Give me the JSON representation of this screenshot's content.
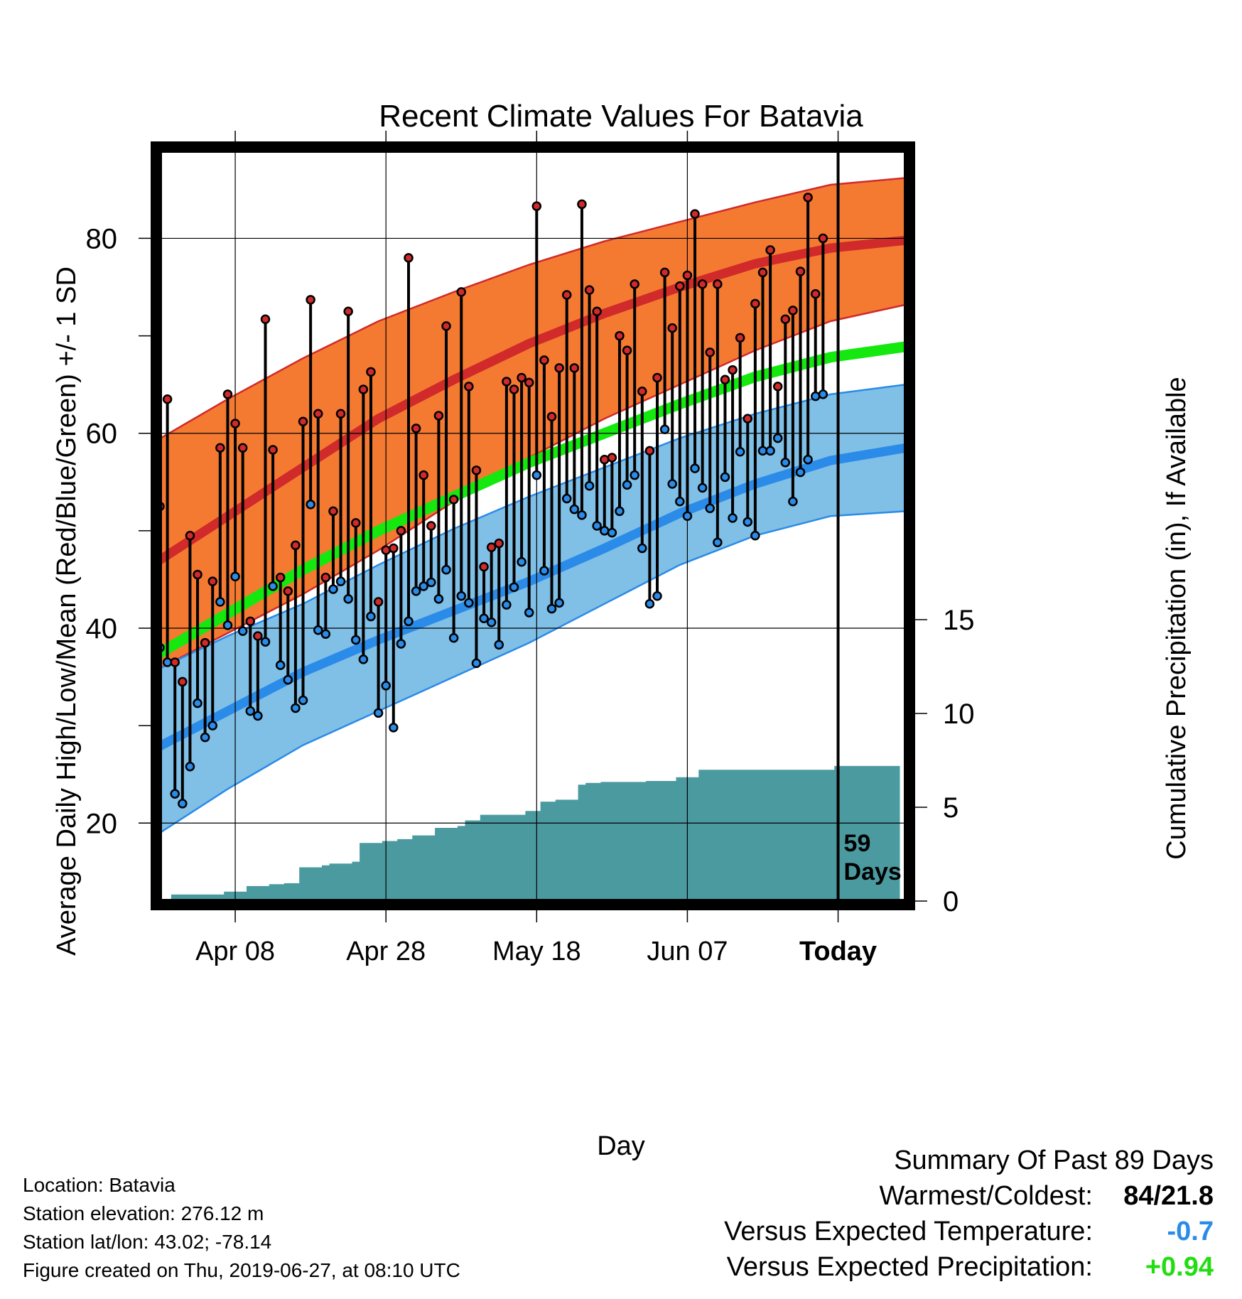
{
  "chart_data": {
    "type": "line",
    "title": "Recent Climate Values For Batavia",
    "xlabel": "Day",
    "ylabel": "Average Daily High/Low/Mean (Red/Blue/Green) +/- 1 SD",
    "y2label": "Cumulative Precipitation (in), If Available",
    "xticks": [
      "Apr 08",
      "Apr 28",
      "May 18",
      "Jun 07",
      "Today"
    ],
    "yticks": [
      20,
      40,
      60,
      80
    ],
    "y2ticks": [
      0,
      5,
      10,
      15
    ],
    "ylim": [
      12,
      89
    ],
    "y2lim": [
      0,
      40
    ],
    "x_day_range": [
      -89,
      10
    ],
    "today_marker_label": "59\nDays",
    "colors": {
      "high_band": "#f47a32",
      "high_line": "#d02a2a",
      "low_band": "#80bfe6",
      "low_line": "#2a8be8",
      "mean_line": "#14e80e",
      "precip": "#4a9aa0"
    },
    "normal_high": {
      "day": [
        -90,
        -80,
        -70,
        -60,
        -50,
        -40,
        -30,
        -20,
        -10,
        0,
        10
      ],
      "mean": [
        46.5,
        51.5,
        56.5,
        61.5,
        65.5,
        69.2,
        72.3,
        75.0,
        77.4,
        79.0,
        79.8
      ],
      "upper": [
        59.0,
        63.5,
        67.7,
        71.5,
        74.5,
        77.3,
        79.7,
        81.7,
        83.7,
        85.5,
        86.2
      ],
      "lower": [
        35.5,
        39.5,
        43.5,
        48.0,
        53.0,
        57.5,
        61.5,
        65.0,
        68.5,
        71.5,
        73.2
      ]
    },
    "normal_low": {
      "day": [
        -90,
        -80,
        -70,
        -60,
        -50,
        -40,
        -30,
        -20,
        -10,
        0,
        10
      ],
      "mean": [
        27.5,
        31.5,
        35.5,
        38.8,
        41.8,
        44.8,
        48.2,
        51.8,
        54.8,
        57.2,
        58.5
      ],
      "upper": [
        35.5,
        39.2,
        42.5,
        46.5,
        50.2,
        53.5,
        56.5,
        59.5,
        62.0,
        64.0,
        65.0
      ],
      "lower": [
        18.5,
        23.5,
        28.0,
        31.5,
        35.0,
        38.5,
        42.5,
        46.5,
        49.5,
        51.5,
        52.0
      ]
    },
    "normal_mean": {
      "day": [
        -90,
        -80,
        -70,
        -60,
        -50,
        -40,
        -30,
        -20,
        -10,
        0,
        10
      ],
      "values": [
        37.0,
        41.5,
        46.0,
        50.0,
        53.5,
        57.0,
        60.0,
        63.0,
        65.8,
        67.8,
        68.9
      ]
    },
    "daily_high": [
      52.5,
      63.5,
      36.5,
      34.5,
      49.5,
      45.5,
      38.5,
      44.8,
      58.5,
      64.0,
      61.0,
      58.5,
      40.7,
      39.2,
      71.7,
      58.3,
      45.2,
      43.8,
      48.5,
      61.2,
      73.7,
      62.0,
      45.2,
      52.0,
      62.0,
      72.5,
      50.8,
      64.5,
      66.3,
      42.7,
      48.0,
      48.2,
      50.0,
      78.0,
      60.5,
      55.7,
      50.5,
      61.8,
      71.0,
      53.2,
      74.5,
      64.8,
      56.2,
      46.3,
      48.3,
      48.7,
      65.3,
      64.5,
      65.7,
      65.2,
      83.3,
      67.5,
      61.7,
      66.7,
      74.2,
      66.7,
      83.5,
      74.7,
      72.5,
      57.3,
      57.5,
      70.0,
      68.5,
      75.3,
      64.3,
      58.2,
      65.7,
      76.5,
      70.8,
      75.1,
      76.2,
      82.5,
      75.3,
      68.3,
      75.3,
      65.5,
      66.5,
      69.8,
      61.5,
      73.3,
      76.5,
      78.8,
      64.8,
      71.7,
      72.6,
      76.6,
      84.2,
      74.3,
      80.0
    ],
    "daily_low": [
      38.0,
      36.5,
      23.0,
      22.0,
      25.8,
      32.3,
      28.8,
      30.0,
      42.7,
      40.3,
      45.3,
      39.7,
      31.5,
      31.0,
      38.6,
      44.3,
      36.2,
      34.7,
      31.8,
      32.6,
      52.7,
      39.8,
      39.4,
      44.0,
      44.8,
      43.0,
      38.8,
      36.8,
      41.2,
      31.3,
      34.1,
      29.8,
      38.4,
      40.7,
      43.8,
      44.3,
      44.7,
      43.0,
      46.0,
      39.0,
      43.3,
      42.6,
      36.4,
      41.0,
      40.6,
      38.3,
      42.4,
      44.2,
      46.8,
      41.6,
      55.7,
      45.9,
      42.0,
      42.6,
      53.3,
      52.2,
      51.6,
      54.6,
      50.5,
      50.0,
      49.8,
      52.0,
      54.7,
      55.7,
      48.2,
      42.5,
      43.3,
      60.4,
      54.8,
      53.0,
      51.5,
      56.4,
      54.4,
      52.3,
      48.8,
      55.5,
      51.3,
      58.1,
      50.9,
      49.5,
      58.2,
      58.2,
      59.5,
      57.0,
      53.0,
      56.0,
      57.3,
      63.8,
      64.0
    ],
    "cumulative_precip": {
      "day": [
        -88.5,
        -87.5,
        -82.5,
        -80.5,
        -77.5,
        -74.5,
        -72.5,
        -70.5,
        -67.5,
        -66.5,
        -63.5,
        -62.5,
        -59.5,
        -57.5,
        -55.5,
        -52.5,
        -49.5,
        -48.5,
        -46.5,
        -43.5,
        -40.5,
        -38.5,
        -36.5,
        -33.5,
        -32.5,
        -30.5,
        -24.5,
        -20.5,
        -17.5,
        -15.5,
        -11.5,
        -8.5,
        -5.5,
        -1.5,
        0.5,
        1.5,
        9.2
      ],
      "values": [
        0.0,
        0.35,
        0.35,
        0.5,
        0.8,
        0.9,
        0.95,
        1.8,
        1.9,
        2.0,
        2.1,
        3.1,
        3.2,
        3.3,
        3.5,
        3.9,
        4.0,
        4.3,
        4.6,
        4.6,
        4.8,
        5.3,
        5.4,
        6.2,
        6.3,
        6.35,
        6.4,
        6.6,
        7.0,
        7.0,
        7.0,
        7.0,
        7.0,
        7.0,
        7.2,
        7.2,
        7.2
      ]
    }
  },
  "info": {
    "location": "Location: Batavia",
    "elevation": "Station elevation: 276.12 m",
    "latlon": "Station lat/lon: 43.02; -78.14",
    "created": "Figure created on Thu, 2019-06-27, at 08:10 UTC"
  },
  "summary": {
    "heading": "Summary Of Past 89 Days",
    "warmest_coldest_label": "Warmest/Coldest:",
    "warmest_coldest_value": "84/21.8",
    "temp_label": "Versus Expected Temperature:",
    "temp_value": "-0.7",
    "temp_color": "#2a8be8",
    "precip_label": "Versus Expected Precipitation:",
    "precip_value": "+0.94",
    "precip_color": "#22dd10"
  }
}
